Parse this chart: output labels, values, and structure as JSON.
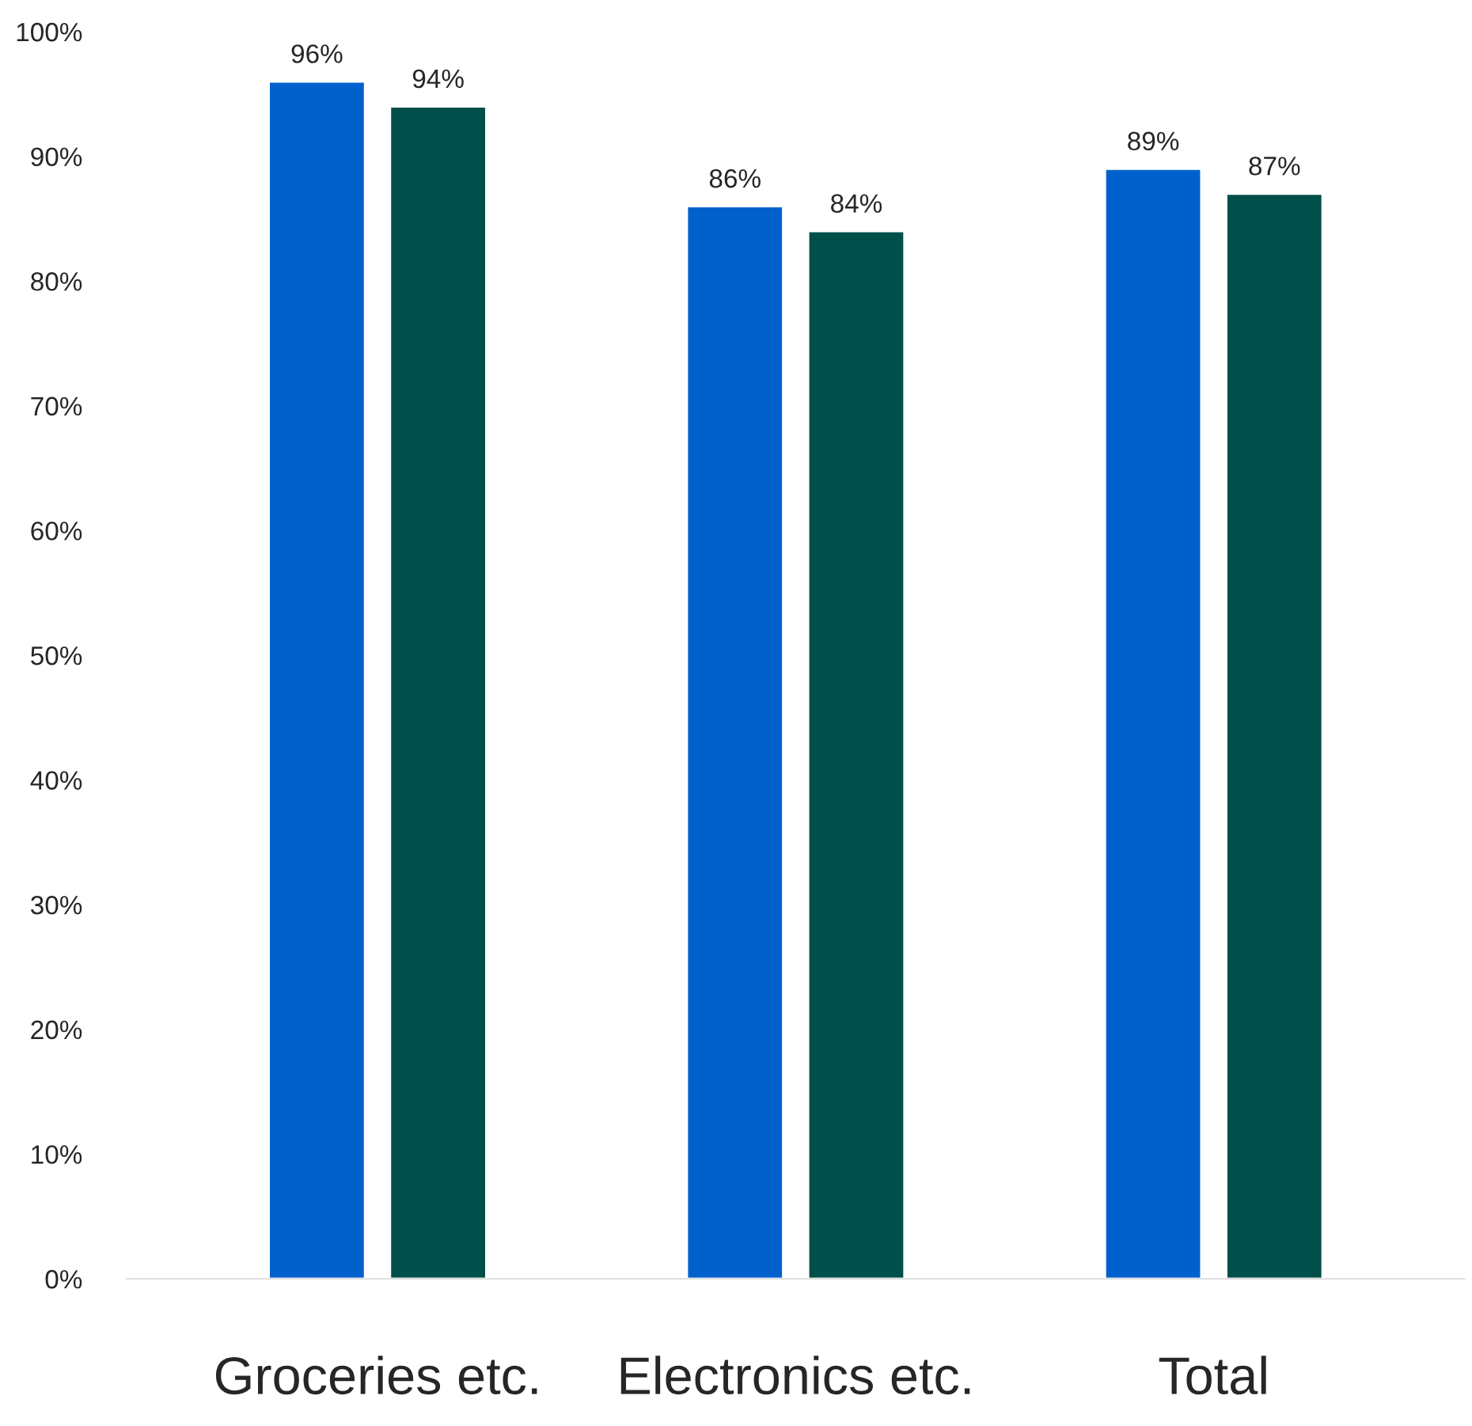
{
  "chart_data": {
    "type": "bar",
    "categories": [
      "Groceries etc.",
      "Electronics etc.",
      "Total"
    ],
    "series": [
      {
        "color": "#0061cc",
        "values": [
          96,
          86,
          89
        ],
        "value_labels": [
          "96%",
          "86%",
          "89%"
        ]
      },
      {
        "color": "#004f4a",
        "values": [
          94,
          84,
          87
        ],
        "value_labels": [
          "94%",
          "84%",
          "87%"
        ]
      }
    ],
    "ylim": [
      0,
      100
    ],
    "yticks": [
      {
        "value": 0,
        "label": "0%"
      },
      {
        "value": 10,
        "label": "10%"
      },
      {
        "value": 20,
        "label": "20%"
      },
      {
        "value": 30,
        "label": "30%"
      },
      {
        "value": 40,
        "label": "40%"
      },
      {
        "value": 50,
        "label": "50%"
      },
      {
        "value": 60,
        "label": "60%"
      },
      {
        "value": 70,
        "label": "70%"
      },
      {
        "value": 80,
        "label": "80%"
      },
      {
        "value": 90,
        "label": "90%"
      },
      {
        "value": 100,
        "label": "100%"
      }
    ],
    "grid": false
  }
}
